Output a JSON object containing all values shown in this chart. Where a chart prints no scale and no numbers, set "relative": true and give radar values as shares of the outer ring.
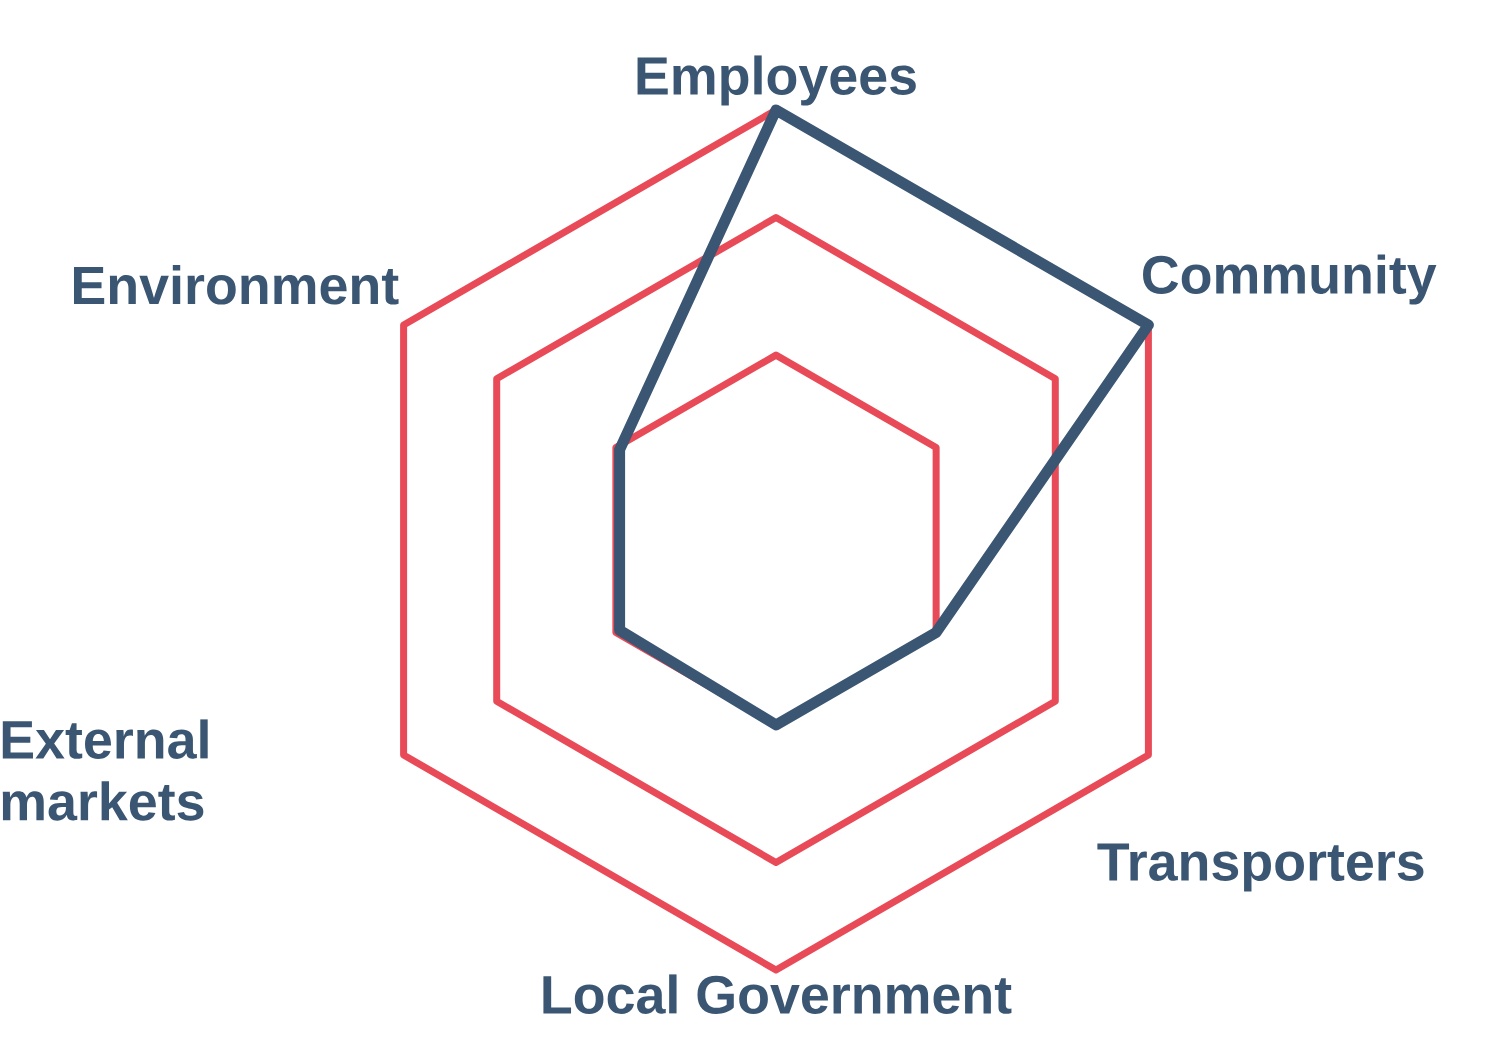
{
  "chart_data": {
    "type": "radar",
    "relative": true,
    "grid": true,
    "categories": [
      "Employees",
      "Community",
      "Transporters",
      "Local Government",
      "External markets",
      "Environment"
    ],
    "series": [
      {
        "color": "#3b5673",
        "values": [
          1.0,
          1.0,
          0.43,
          0.43,
          0.42,
          0.42
        ]
      }
    ]
  }
}
